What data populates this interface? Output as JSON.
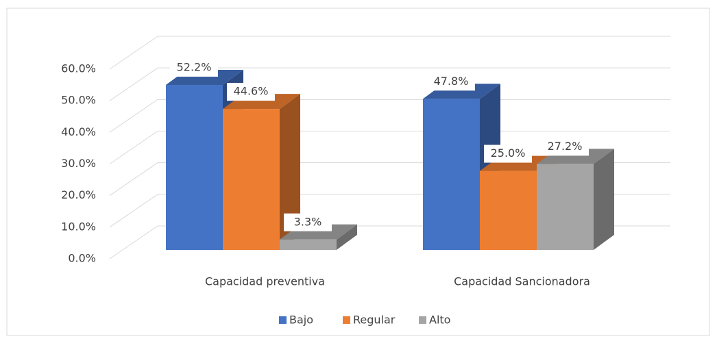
{
  "chart_data": {
    "type": "bar3d",
    "categories": [
      "Capacidad preventiva",
      "Capacidad Sancionadora"
    ],
    "series": [
      {
        "name": "Bajo",
        "color": "#4472c4",
        "values": [
          52.2,
          47.8
        ],
        "value_labels": [
          "52.2%",
          "47.8%"
        ]
      },
      {
        "name": "Regular",
        "color": "#ed7d31",
        "values": [
          44.6,
          25.0
        ],
        "value_labels": [
          "44.6%",
          "25.0%"
        ]
      },
      {
        "name": "Alto",
        "color": "#a5a5a5",
        "values": [
          3.3,
          27.2
        ],
        "value_labels": [
          "3.3%",
          "27.2%"
        ]
      }
    ],
    "ylim": [
      0,
      60
    ],
    "yticks": [
      {
        "value": 0,
        "label": "0.0%"
      },
      {
        "value": 10,
        "label": "10.0%"
      },
      {
        "value": 20,
        "label": "20.0%"
      },
      {
        "value": 30,
        "label": "30.0%"
      },
      {
        "value": 40,
        "label": "40.0%"
      },
      {
        "value": 50,
        "label": "50.0%"
      },
      {
        "value": 60,
        "label": "60.0%"
      }
    ],
    "grid": true,
    "legend": "bottom"
  }
}
